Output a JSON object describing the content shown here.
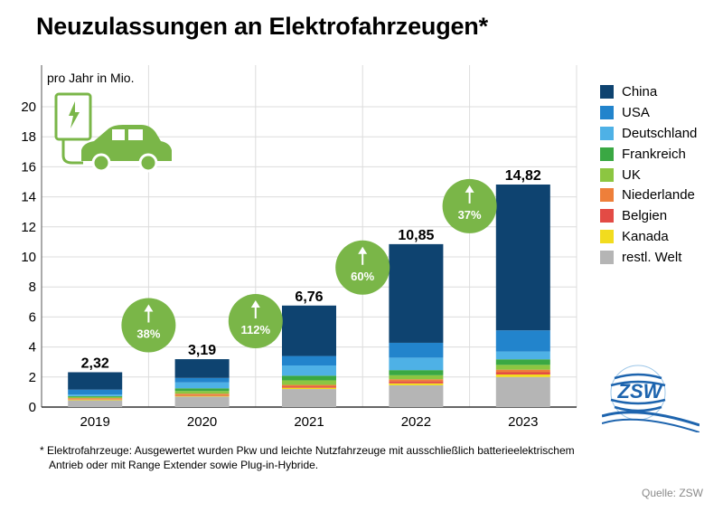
{
  "title": "Neuzulassungen an Elektrofahrzeugen*",
  "unit_label": "pro Jahr in Mio.",
  "chart_data": {
    "type": "bar",
    "stacked": true,
    "categories": [
      "2019",
      "2020",
      "2021",
      "2022",
      "2023"
    ],
    "ylim": [
      0,
      22
    ],
    "yticks": [
      0,
      2,
      4,
      6,
      8,
      10,
      12,
      14,
      16,
      18,
      20
    ],
    "grid": true,
    "legend_position": "right",
    "series": [
      {
        "name": "restl. Welt",
        "color": "#b5b5b5",
        "values": [
          0.45,
          0.7,
          1.2,
          1.45,
          2.0
        ]
      },
      {
        "name": "Kanada",
        "color": "#f2dc1e",
        "values": [
          0.05,
          0.05,
          0.09,
          0.13,
          0.17
        ]
      },
      {
        "name": "Belgien",
        "color": "#e34b45",
        "values": [
          0.02,
          0.05,
          0.09,
          0.13,
          0.15
        ]
      },
      {
        "name": "Niederlande",
        "color": "#ee7f3a",
        "values": [
          0.07,
          0.09,
          0.1,
          0.14,
          0.17
        ]
      },
      {
        "name": "UK",
        "color": "#8cc641",
        "values": [
          0.08,
          0.18,
          0.3,
          0.27,
          0.32
        ]
      },
      {
        "name": "Frankreich",
        "color": "#3aa843",
        "values": [
          0.06,
          0.18,
          0.31,
          0.34,
          0.37
        ]
      },
      {
        "name": "Deutschland",
        "color": "#4eb1e6",
        "values": [
          0.11,
          0.39,
          0.68,
          0.83,
          0.52
        ]
      },
      {
        "name": "USA",
        "color": "#2284cc",
        "values": [
          0.32,
          0.3,
          0.63,
          0.99,
          1.41
        ]
      },
      {
        "name": "China",
        "color": "#0e4370",
        "values": [
          1.16,
          1.25,
          3.36,
          6.57,
          9.71
        ]
      }
    ],
    "totals": [
      "2,32",
      "3,19",
      "6,76",
      "10,85",
      "14,82"
    ],
    "growth": [
      {
        "label": "38%",
        "between": [
          "2019",
          "2020"
        ]
      },
      {
        "label": "112%",
        "between": [
          "2020",
          "2021"
        ]
      },
      {
        "label": "60%",
        "between": [
          "2021",
          "2022"
        ]
      },
      {
        "label": "37%",
        "between": [
          "2022",
          "2023"
        ]
      }
    ],
    "legend_order": [
      "China",
      "USA",
      "Deutschland",
      "Frankreich",
      "UK",
      "Niederlande",
      "Belgien",
      "Kanada",
      "restl. Welt"
    ]
  },
  "footnote": {
    "line1": "* Elektrofahrzeuge: Ausgewertet wurden Pkw und leichte Nutzfahrzeuge mit ausschließlich batterieelektrischem",
    "line2": "Antrieb oder mit Range Extender sowie Plug-in-Hybride."
  },
  "logo_text": "ZSW",
  "source": "Quelle: ZSW",
  "colors": {
    "growth_circle": "#7ab648",
    "ev_icon": "#7ab648",
    "logo_blue": "#1d64ae"
  },
  "icons": [
    "ev-charging-car-icon",
    "growth-arrow-icon",
    "zsw-logo"
  ]
}
